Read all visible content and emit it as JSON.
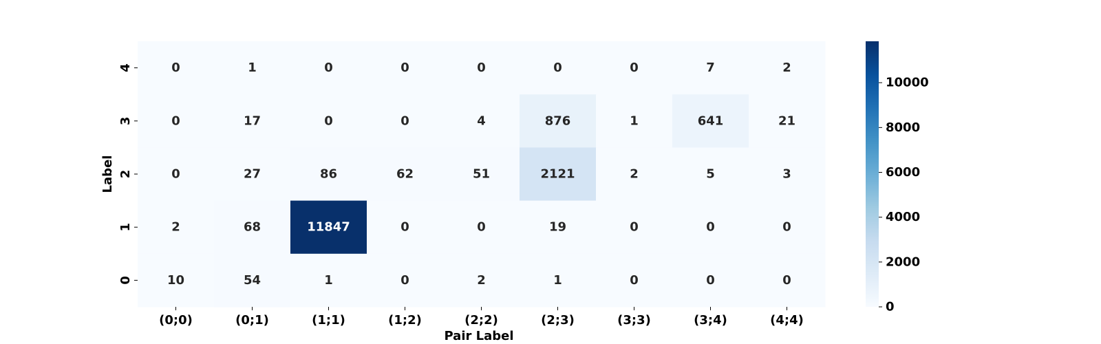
{
  "chart_data": {
    "type": "heatmap",
    "title": "",
    "xlabel": "Pair Label",
    "ylabel": "Label",
    "x_categories": [
      "(0;0)",
      "(0;1)",
      "(1;1)",
      "(1;2)",
      "(2;2)",
      "(2;3)",
      "(3;3)",
      "(3;4)",
      "(4;4)"
    ],
    "y_categories": [
      "4",
      "3",
      "2",
      "1",
      "0"
    ],
    "values": [
      [
        0,
        1,
        0,
        0,
        0,
        0,
        0,
        7,
        2
      ],
      [
        0,
        17,
        0,
        0,
        4,
        876,
        1,
        641,
        21
      ],
      [
        0,
        27,
        86,
        62,
        51,
        2121,
        2,
        5,
        3
      ],
      [
        2,
        68,
        11847,
        0,
        0,
        19,
        0,
        0,
        0
      ],
      [
        10,
        54,
        1,
        0,
        2,
        1,
        0,
        0,
        0
      ]
    ],
    "colorbar": {
      "colormap": "Blues",
      "min": 0,
      "max": 11847,
      "ticks": [
        0,
        2000,
        4000,
        6000,
        8000,
        10000
      ],
      "tick_labels": [
        "0",
        "2000",
        "4000",
        "6000",
        "8000",
        "10000"
      ]
    },
    "colors": {
      "low": "#f7fbff",
      "high": "#08306b"
    }
  }
}
